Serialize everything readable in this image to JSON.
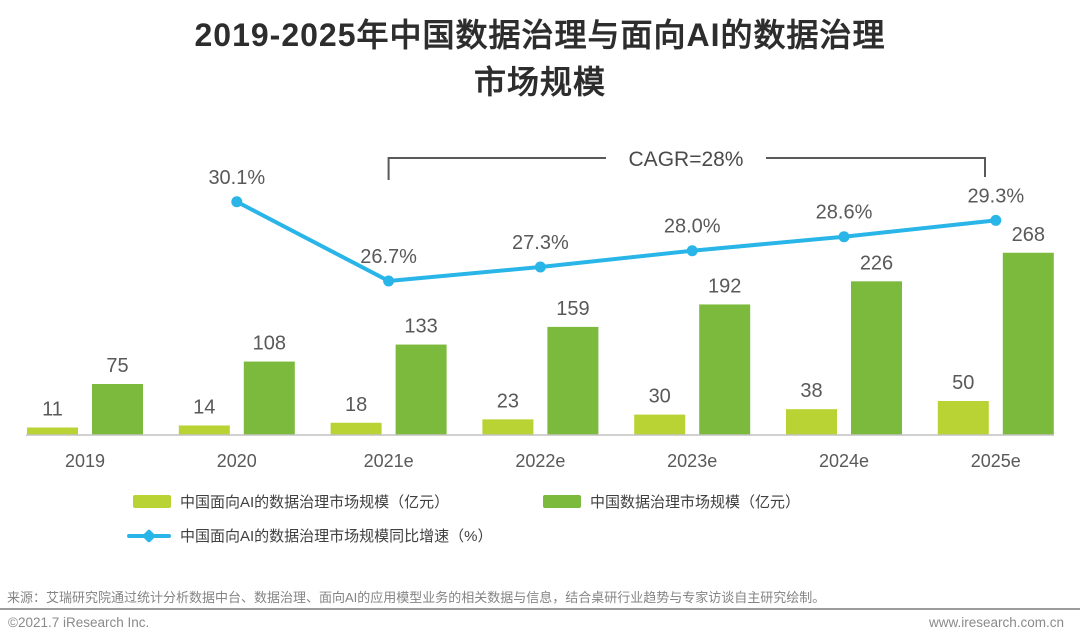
{
  "title": {
    "line1": "2019-2025年中国数据治理与面向AI的数据治理",
    "line2": "市场规模"
  },
  "chart_data": {
    "type": "combo-bar-line",
    "categories": [
      "2019",
      "2020",
      "2021e",
      "2022e",
      "2023e",
      "2024e",
      "2025e"
    ],
    "series": [
      {
        "name": "中国面向AI的数据治理市场规模（亿元）",
        "type": "bar",
        "values": [
          11,
          14,
          18,
          23,
          30,
          38,
          50
        ],
        "color": "#b9d234"
      },
      {
        "name": "中国数据治理市场规模（亿元）",
        "type": "bar",
        "values": [
          75,
          108,
          133,
          159,
          192,
          226,
          268
        ],
        "color": "#7cba3d"
      },
      {
        "name": "中国面向AI的数据治理市场规模同比增速（%）",
        "type": "line",
        "values": [
          null,
          30.1,
          26.7,
          27.3,
          28.0,
          28.6,
          29.3
        ],
        "labels": [
          "",
          "30.1%",
          "26.7%",
          "27.3%",
          "28.0%",
          "28.6%",
          "29.3%"
        ],
        "color": "#29b5e8"
      }
    ],
    "annotation": {
      "label": "CAGR=28%",
      "from_category": "2021e",
      "to_category": "2025e"
    },
    "bar_unit": "亿元",
    "line_unit": "%",
    "axes_visible": false,
    "grid": false,
    "legend_position": "bottom",
    "label_color": "#595959"
  },
  "legend": {
    "items": [
      {
        "label": "中国面向AI的数据治理市场规模（亿元）",
        "marker": "bar"
      },
      {
        "label": "中国数据治理市场规模（亿元）",
        "marker": "bar"
      },
      {
        "label": "中国面向AI的数据治理市场规模同比增速（%）",
        "marker": "line"
      }
    ]
  },
  "source": {
    "text": "来源：艾瑞研究院通过统计分析数据中台、数据治理、面向AI的应用模型业务的相关数据与信息，结合桌研行业趋势与专家访谈自主研究绘制。"
  },
  "footer": {
    "copyright": "©2021.7 iResearch Inc.",
    "website": "www.iresearch.com.cn"
  },
  "colors": {
    "bar_light": "#b9d234",
    "bar_dark": "#7cba3d",
    "line_blue": "#29b5e8",
    "label_gray": "#595959",
    "bracket_gray": "#595959",
    "axis_gray": "#c2c2c2",
    "title_dark": "#2d2d2d"
  }
}
